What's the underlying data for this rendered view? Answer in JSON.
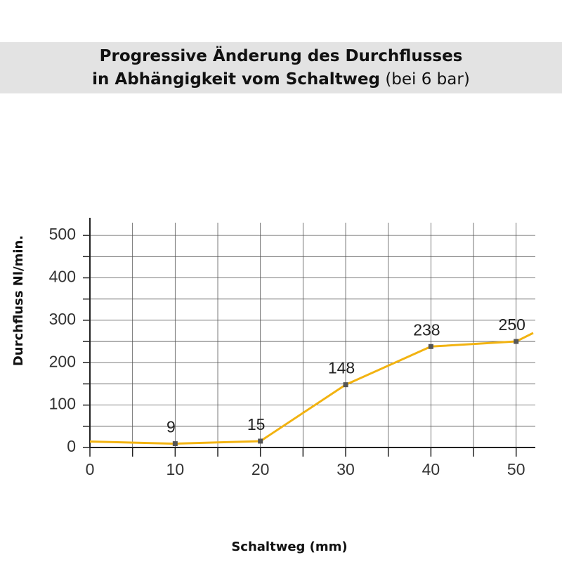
{
  "chart_data": {
    "type": "line",
    "title": "Progressive Änderung des Durchflusses",
    "title_line2": "in Abhängigkeit vom Schaltweg",
    "subtitle": "(bei 6 bar)",
    "xlabel": "Schaltweg (mm)",
    "ylabel": "Durchfluss Nl/min.",
    "x": [
      0,
      10,
      20,
      30,
      40,
      50,
      52
    ],
    "series": [
      {
        "name": "Durchfluss",
        "color": "#f2b311",
        "marker_color": "#555555",
        "values": [
          14,
          9,
          15,
          148,
          238,
          250,
          270
        ],
        "value_labels": [
          null,
          "9",
          "15",
          "148",
          "238",
          "250",
          null
        ]
      }
    ],
    "xlim": [
      0,
      52
    ],
    "ylim": [
      0,
      530
    ],
    "xticks": [
      0,
      10,
      20,
      30,
      40,
      50
    ],
    "x_minor_ticks": [
      5,
      15,
      25,
      35,
      45
    ],
    "yticks": [
      0,
      100,
      200,
      300,
      400,
      500
    ],
    "y_minor_ticks": [
      50,
      150,
      250,
      350,
      450
    ],
    "grid": true
  }
}
